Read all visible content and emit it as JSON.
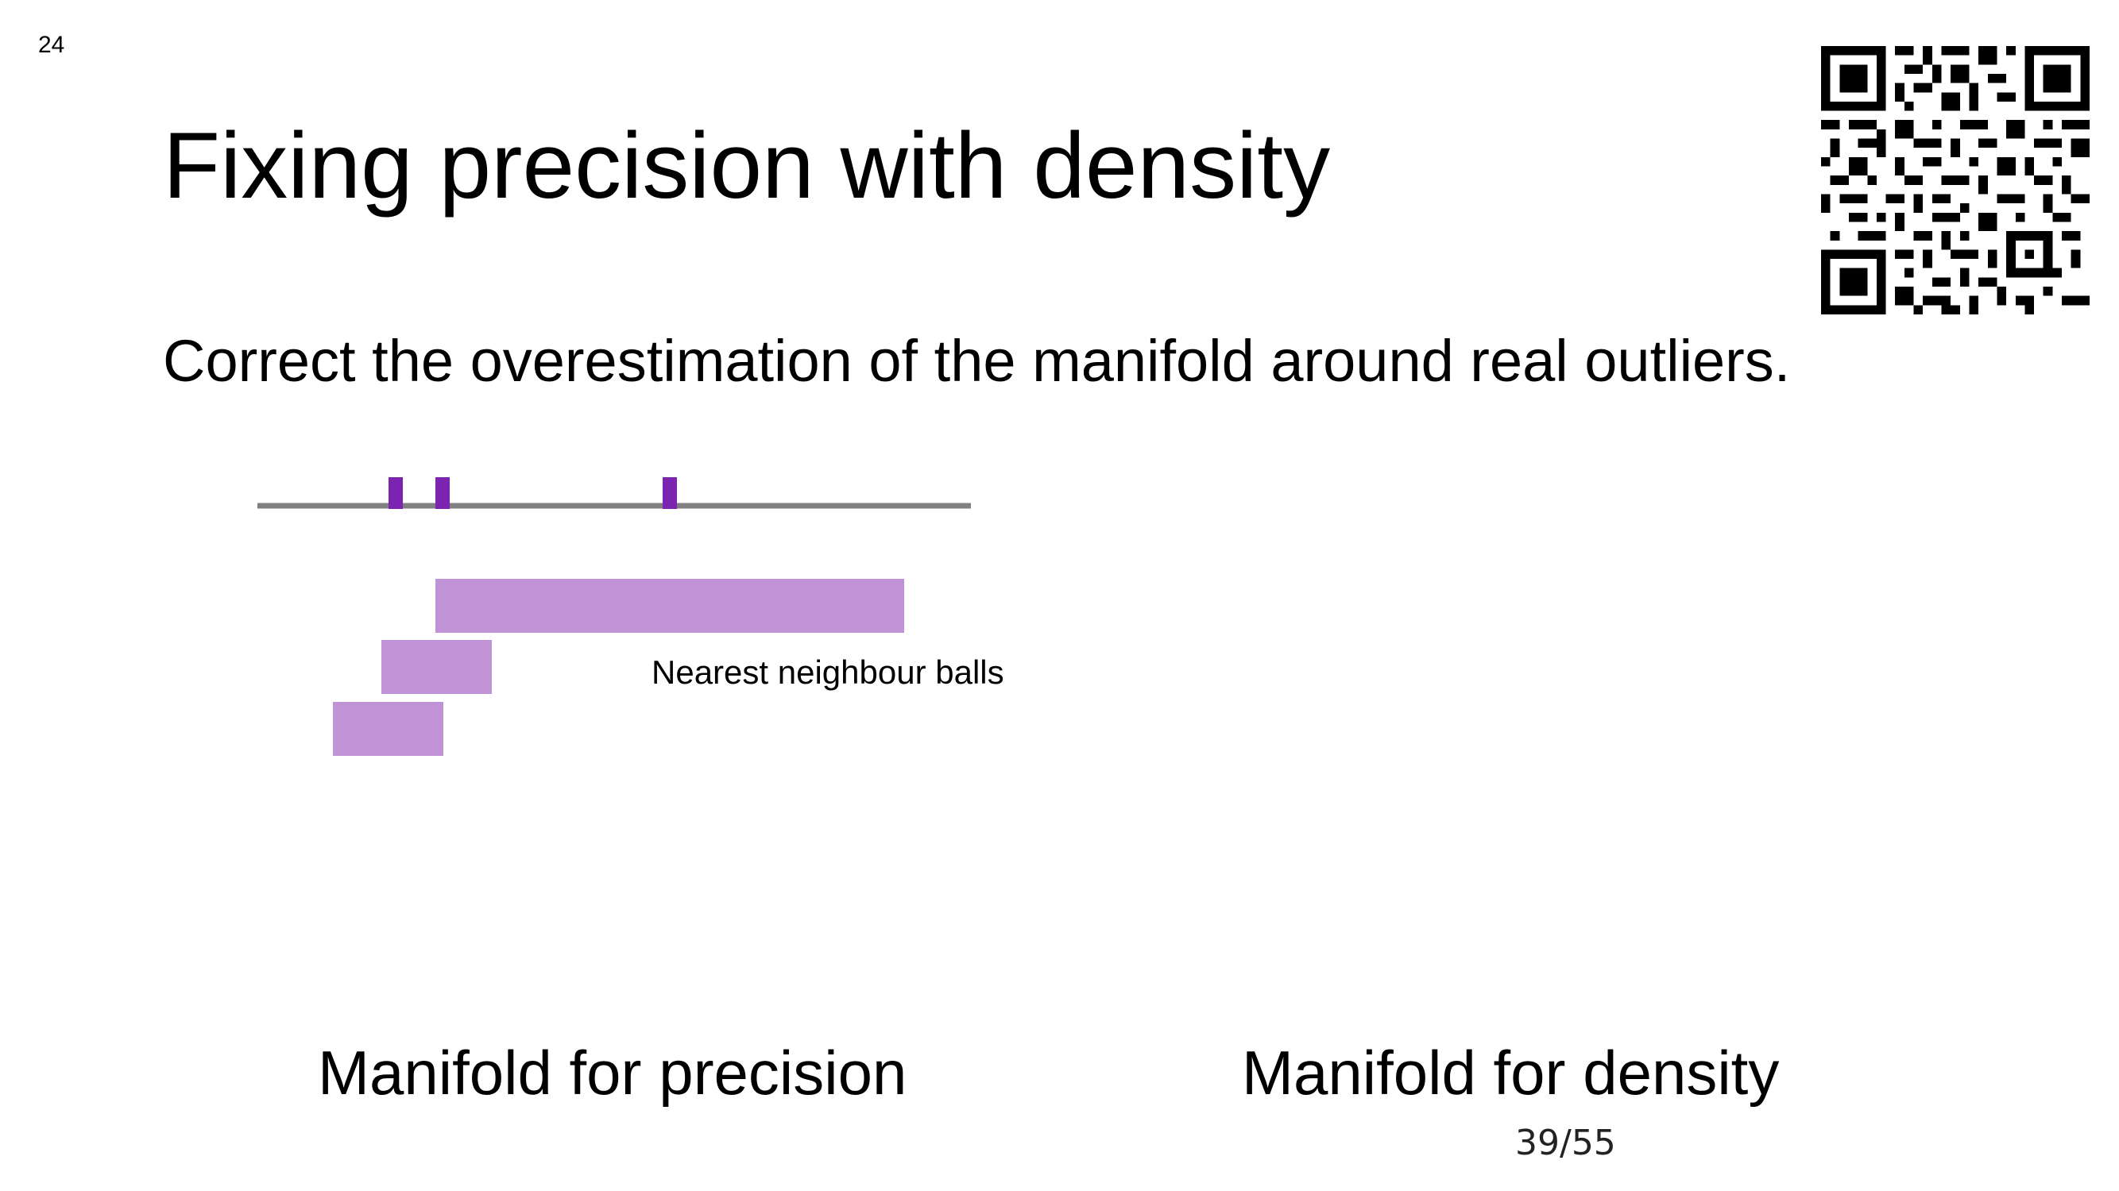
{
  "slide": {
    "number": "24",
    "title": "Fixing precision with density",
    "subtitle": "Correct the overestimation of the manifold around real outliers.",
    "page_counter": "39/55"
  },
  "diagram": {
    "axis_color": "#808080",
    "point_color": "#7B24B0",
    "ball_color": "#C093D6",
    "annotation": "Nearest neighbour balls",
    "caption_precision": "Manifold for precision",
    "caption_density": "Manifold for density"
  },
  "qr_code": {
    "icon": "qr-code-icon"
  }
}
